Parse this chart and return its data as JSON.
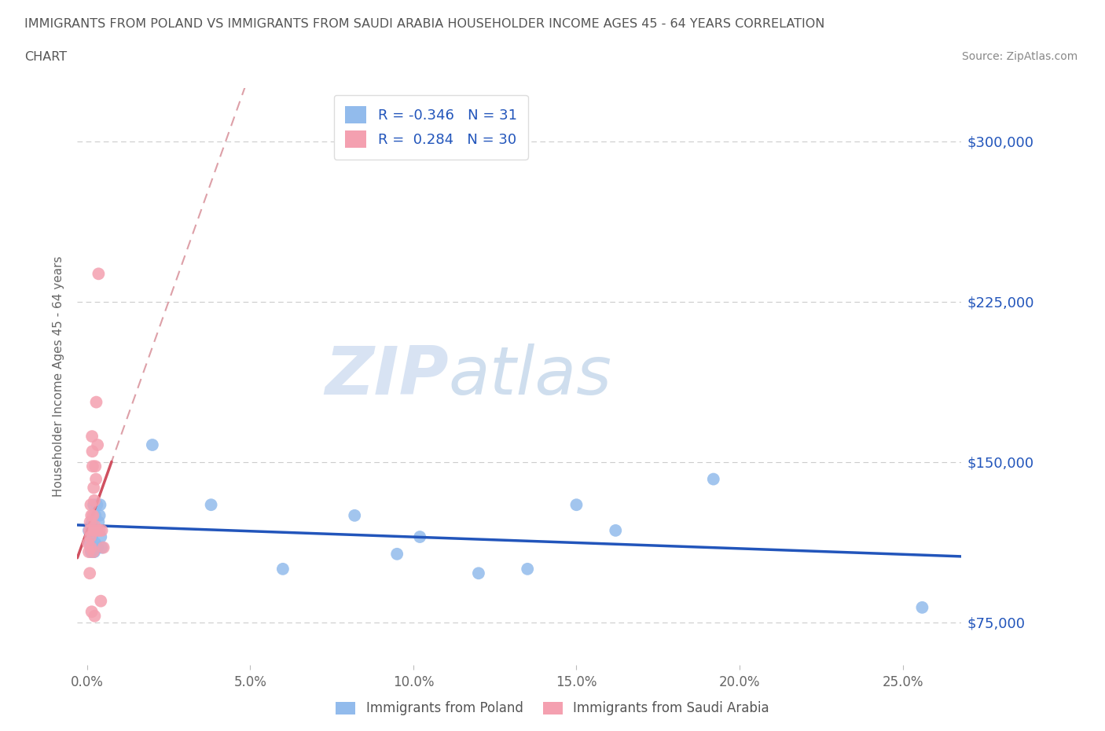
{
  "title_line1": "IMMIGRANTS FROM POLAND VS IMMIGRANTS FROM SAUDI ARABIA HOUSEHOLDER INCOME AGES 45 - 64 YEARS CORRELATION",
  "title_line2": "CHART",
  "source": "Source: ZipAtlas.com",
  "xlabel_ticks": [
    "0.0%",
    "5.0%",
    "10.0%",
    "15.0%",
    "20.0%",
    "25.0%"
  ],
  "xlabel_vals": [
    0.0,
    0.05,
    0.1,
    0.15,
    0.2,
    0.25
  ],
  "ylabel_ticks": [
    "$75,000",
    "$150,000",
    "$225,000",
    "$300,000"
  ],
  "ylabel_vals": [
    75000,
    150000,
    225000,
    300000
  ],
  "ylim": [
    55000,
    325000
  ],
  "xlim": [
    -0.003,
    0.268
  ],
  "poland_R": -0.346,
  "poland_N": 31,
  "saudi_R": 0.284,
  "saudi_N": 30,
  "poland_color": "#92BBEC",
  "saudi_color": "#F4A0B0",
  "poland_line_color": "#2255BB",
  "saudi_line_color": "#D05060",
  "saudi_dashed_color": "#DDA0A8",
  "watermark_zip": "ZIP",
  "watermark_atlas": "atlas",
  "poland_x": [
    0.0005,
    0.0008,
    0.001,
    0.0012,
    0.0015,
    0.0015,
    0.0018,
    0.002,
    0.0022,
    0.0025,
    0.0025,
    0.0028,
    0.003,
    0.0032,
    0.0035,
    0.0038,
    0.004,
    0.0042,
    0.0045,
    0.02,
    0.038,
    0.06,
    0.082,
    0.095,
    0.102,
    0.12,
    0.135,
    0.15,
    0.162,
    0.192,
    0.256
  ],
  "poland_y": [
    118000,
    112000,
    120000,
    108000,
    122000,
    115000,
    118000,
    130000,
    108000,
    125000,
    112000,
    118000,
    130000,
    110000,
    122000,
    125000,
    130000,
    115000,
    110000,
    158000,
    130000,
    100000,
    125000,
    107000,
    115000,
    98000,
    100000,
    130000,
    118000,
    142000,
    82000
  ],
  "saudi_x": [
    0.0003,
    0.0005,
    0.0007,
    0.0008,
    0.0009,
    0.001,
    0.0011,
    0.0012,
    0.0013,
    0.0014,
    0.0015,
    0.0016,
    0.0017,
    0.0018,
    0.0019,
    0.002,
    0.0021,
    0.0022,
    0.0023,
    0.0024,
    0.0025,
    0.0027,
    0.0028,
    0.003,
    0.0032,
    0.0035,
    0.0038,
    0.0042,
    0.0045,
    0.005
  ],
  "saudi_y": [
    112000,
    108000,
    118000,
    98000,
    122000,
    115000,
    130000,
    110000,
    125000,
    80000,
    162000,
    155000,
    148000,
    125000,
    108000,
    138000,
    118000,
    132000,
    78000,
    120000,
    148000,
    142000,
    178000,
    118000,
    158000,
    238000,
    118000,
    85000,
    118000,
    110000
  ]
}
